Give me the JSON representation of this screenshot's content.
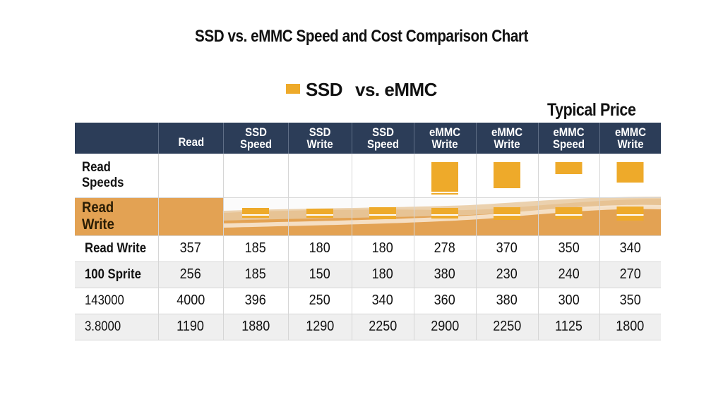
{
  "chart_data": {
    "type": "table",
    "title": "SSD vs. eMMC Speed and Cost Comparison Chart",
    "legend": {
      "label_a": "SSD",
      "label_b": "vs. eMMC",
      "color": "#eeaa2a"
    },
    "price_label": "Typical Price",
    "columns": [
      "Read",
      "SSD Speed",
      "SSD Write",
      "SSD Speed",
      "eMMC Write",
      "eMMC Write",
      "eMMC Speed",
      "eMMC Write"
    ],
    "column_lines": [
      [
        "Read"
      ],
      [
        "SSD",
        "Speed"
      ],
      [
        "SSD",
        "Write"
      ],
      [
        "SSD",
        "Speed"
      ],
      [
        "eMMC",
        "Write"
      ],
      [
        "eMMC",
        "Write"
      ],
      [
        "eMMC",
        "Speed"
      ],
      [
        "eMMC",
        "Write"
      ]
    ],
    "bar_rows": [
      {
        "label": "Read Speeds",
        "values": [
          null,
          null,
          null,
          null,
          1.0,
          0.8,
          0.38,
          0.62
        ]
      },
      {
        "label": "Read Write",
        "values": [
          null,
          0.45,
          0.42,
          0.55,
          0.5,
          0.6,
          0.55,
          0.65
        ]
      }
    ],
    "rows": [
      {
        "label": "Read Write",
        "values": [
          "357",
          "185",
          "180",
          "180",
          "278",
          "370",
          "350",
          "340"
        ]
      },
      {
        "label": "100 Sprite",
        "values": [
          "256",
          "185",
          "150",
          "180",
          "380",
          "230",
          "240",
          "270"
        ]
      },
      {
        "label": "143000",
        "values": [
          "4000",
          "396",
          "250",
          "340",
          "360",
          "380",
          "300",
          "350"
        ]
      },
      {
        "label": "3.8000",
        "values": [
          "1190",
          "1880",
          "1290",
          "2250",
          "2900",
          "2250",
          "1125",
          "1800"
        ]
      }
    ],
    "colors": {
      "header": "#2c3d58",
      "accent": "#eeaa2a",
      "band": "#e3a253",
      "wave": "#e8c9a0"
    }
  }
}
